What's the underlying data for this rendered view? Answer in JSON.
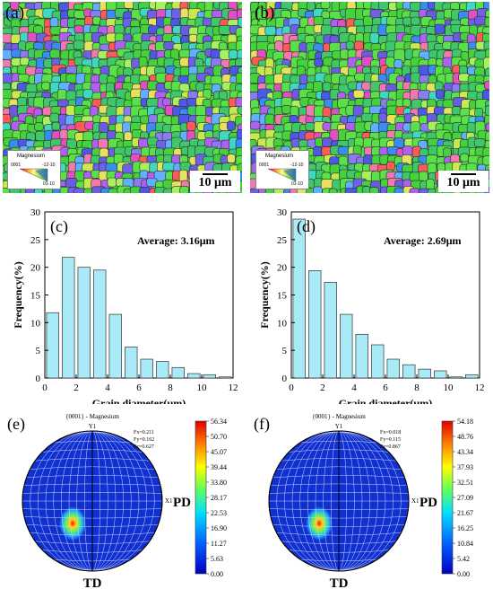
{
  "ebsd_maps": [
    {
      "label": "(a)",
      "scale_text": "10 μm",
      "legend_title": "Magnesium",
      "legend_ticks": [
        "0001",
        "-12-10",
        "01-10"
      ]
    },
    {
      "label": "(b)",
      "scale_text": "10 μm",
      "legend_title": "Magnesium",
      "legend_ticks": [
        "0001",
        "-12-10",
        "01-10"
      ]
    }
  ],
  "chart_data": [
    {
      "type": "bar",
      "label": "(c)",
      "annotation": "Average:  3.16μm",
      "xlabel": "Grain diameter(μm)",
      "ylabel": "Frequency(%)",
      "xlim": [
        0,
        12
      ],
      "ylim": [
        0,
        30
      ],
      "xticks": [
        "0",
        "2",
        "4",
        "6",
        "8",
        "10",
        "12"
      ],
      "yticks": [
        "0",
        "5",
        "10",
        "15",
        "20",
        "25",
        "30"
      ],
      "x": [
        0.5,
        1.5,
        2.5,
        3.5,
        4.5,
        5.5,
        6.5,
        7.5,
        8.5,
        9.5,
        10.5,
        11.5
      ],
      "values": [
        11.8,
        21.8,
        20.0,
        19.5,
        11.5,
        5.6,
        3.4,
        3.0,
        1.9,
        0.8,
        0.6,
        0.2
      ],
      "bar_color": "#a8eaf5"
    },
    {
      "type": "bar",
      "label": "(d)",
      "annotation": "Average:  2.69μm",
      "xlabel": "Grain diameter(μm)",
      "ylabel": "Frequency(%)",
      "xlim": [
        0,
        12
      ],
      "ylim": [
        0,
        30
      ],
      "xticks": [
        "0",
        "2",
        "4",
        "6",
        "8",
        "10",
        "12"
      ],
      "yticks": [
        "0",
        "5",
        "10",
        "15",
        "20",
        "25",
        "30"
      ],
      "x": [
        0.5,
        1.5,
        2.5,
        3.5,
        4.5,
        5.5,
        6.5,
        7.5,
        8.5,
        9.5,
        10.5,
        11.5
      ],
      "values": [
        28.7,
        19.4,
        17.3,
        11.5,
        7.9,
        6.0,
        3.4,
        2.4,
        1.6,
        1.3,
        0.2,
        0.6
      ],
      "bar_color": "#a8eaf5"
    }
  ],
  "pole_figures": [
    {
      "label": "(e)",
      "title": "{0001} - Magnesium",
      "y_label": "Y1",
      "x_label": "X1",
      "fx": "Fx=0.211",
      "fy": "Fy=0.162",
      "fz": "Fz=0.627",
      "pd": "PD",
      "td": "TD",
      "colorbar_ticks": [
        "56.34",
        "50.70",
        "45.07",
        "39.44",
        "33.80",
        "28.17",
        "22.53",
        "16.90",
        "11.27",
        "5.63",
        "0.00"
      ]
    },
    {
      "label": "(f)",
      "title": "{0001} - Magnesium",
      "y_label": "Y1",
      "x_label": "X1",
      "fx": "Fx=0.018",
      "fy": "Fy=0.115",
      "fz": "Fz=0.867",
      "pd": "PD",
      "td": "TD",
      "colorbar_ticks": [
        "54.18",
        "48.76",
        "43.34",
        "37.93",
        "32.51",
        "27.09",
        "21.67",
        "16.25",
        "10.84",
        "5.42",
        "0.00"
      ]
    }
  ],
  "colors": {
    "ipf_red": "#e8202a",
    "ipf_green": "#46d23c",
    "ipf_blue": "#3c4bd8",
    "pf_background": "#1030d0"
  }
}
